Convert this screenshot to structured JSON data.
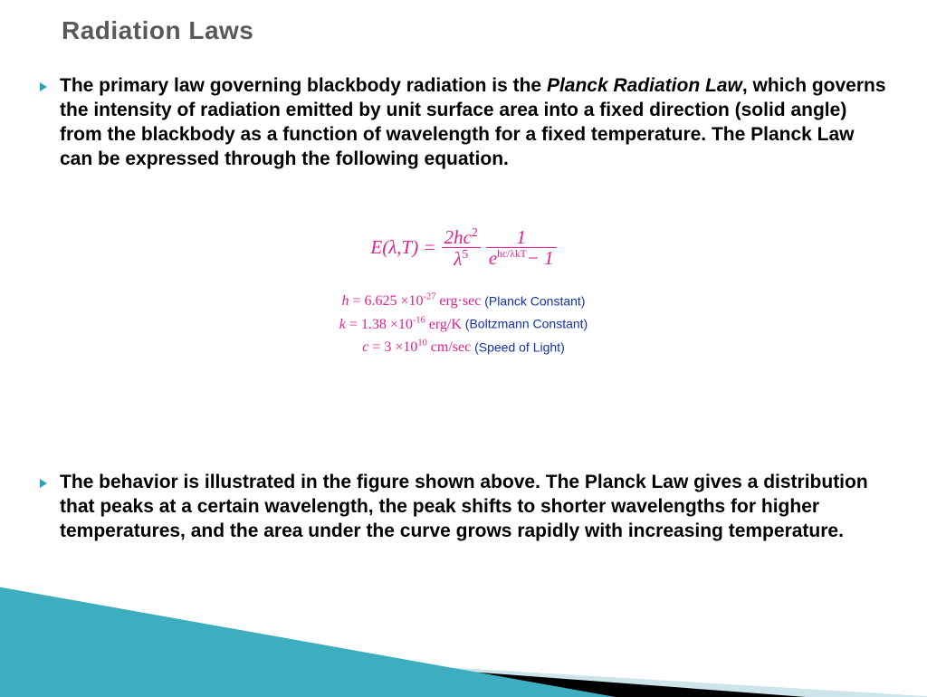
{
  "title": "Radiation Laws",
  "colors": {
    "title_text": "#595959",
    "body_text": "#000000",
    "bullet_marker": "#2aa5b8",
    "equation_color": "#e02090",
    "constant_label_color": "#1030b0",
    "decor_teal": "#3daec0",
    "decor_black": "#000000",
    "decor_light": "#cde4ea",
    "background": "#ffffff"
  },
  "typography": {
    "title_fontsize": 28,
    "body_fontsize": 21,
    "equation_fontsize": 21,
    "constant_fontsize": 16,
    "body_font": "Verdana",
    "equation_font": "Georgia"
  },
  "bullets": [
    {
      "pre": "The primary law governing blackbody radiation is the ",
      "ital": "Planck Radiation Law",
      "post": ", which governs the intensity of radiation emitted by unit surface area into a fixed direction (solid angle) from the blackbody as a function of wavelength for a fixed temperature. The Planck Law can be expressed through the following equation."
    },
    {
      "pre": "The behavior is illustrated in the figure shown above. The Planck Law gives a distribution that peaks at a certain wavelength, the peak shifts to shorter wavelengths for higher temperatures, and the area under the curve grows rapidly with increasing temperature.",
      "ital": "",
      "post": ""
    }
  ],
  "equation": {
    "lhs": "E(λ,T) = ",
    "frac1_num": "2hc",
    "frac1_num_sup": "2",
    "frac1_den_base": "λ",
    "frac1_den_sup": "5",
    "frac2_num": "1",
    "frac2_den_left": "e",
    "frac2_den_exp": "hc/λkT",
    "frac2_den_right": "− 1"
  },
  "constants": [
    {
      "expr_var": "h",
      "expr_rest": " = 6.625 ×10",
      "exp": "-27",
      "unit": "  erg·sec",
      "label": "  (Planck Constant)"
    },
    {
      "expr_var": "k",
      "expr_rest": " = 1.38 ×10",
      "exp": "-16",
      "unit": "  erg/K",
      "label": "   (Boltzmann Constant)"
    },
    {
      "expr_var": "c",
      "expr_rest": " = 3 ×10",
      "exp": "10",
      "unit": "  cm/sec",
      "label": "   (Speed of Light)"
    }
  ]
}
